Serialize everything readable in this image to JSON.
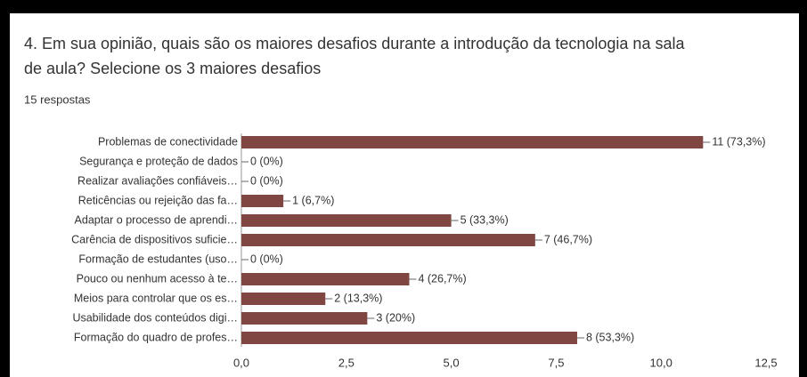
{
  "chart_data": {
    "type": "barh",
    "title": "4. Em sua opinião, quais são os maiores desafios durante a introdução da tecnologia na sala de aula? Selecione os 3 maiores desafios",
    "subtitle": "15 respostas",
    "categories": [
      "Problemas de conectividade",
      "Segurança e proteção de dados",
      "Realizar avaliações confiáveis…",
      "Reticências ou rejeição das fa…",
      "Adaptar o processo de aprendi…",
      "Carência de dispositivos suficie…",
      "Formação de estudantes (uso…",
      "Pouco ou nenhum acesso à te…",
      "Meios para controlar que os es…",
      "Usabilidade dos conteúdos digi…",
      "Formação do quadro de profes…"
    ],
    "values": [
      11,
      0,
      0,
      1,
      5,
      7,
      0,
      4,
      2,
      3,
      8
    ],
    "value_labels": [
      "11 (73,3%)",
      "0 (0%)",
      "0 (0%)",
      "1 (6,7%)",
      "5 (33,3%)",
      "7 (46,7%)",
      "0 (0%)",
      "4 (26,7%)",
      "2 (13,3%)",
      "3 (20%)",
      "8 (53,3%)"
    ],
    "color": "#7f4642",
    "xlim": [
      0,
      12.5
    ],
    "xticks": [
      {
        "value": 0,
        "label": "0,0"
      },
      {
        "value": 2.5,
        "label": "2,5"
      },
      {
        "value": 5,
        "label": "5,0"
      },
      {
        "value": 7.5,
        "label": "7,5"
      },
      {
        "value": 10,
        "label": "10,0"
      },
      {
        "value": 12.5,
        "label": "12,5"
      }
    ]
  }
}
